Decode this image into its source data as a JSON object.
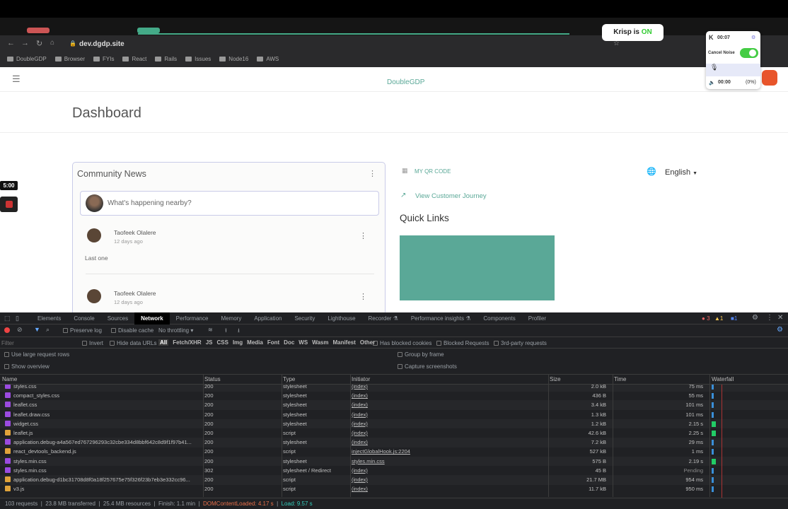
{
  "browser": {
    "url": "dev.dgdp.site",
    "bookmarks": [
      "DoubleGDP",
      "Browser",
      "FYIs",
      "React",
      "Rails",
      "Issues",
      "Node16",
      "AWS"
    ]
  },
  "krisp": {
    "popup_prefix": "Krisp is ",
    "popup_state": "ON",
    "timer": "00:07",
    "cancel_noise_label": "Cancel Noise",
    "cancel_noise_on": true,
    "speaker_time": "00:00",
    "speaker_pct": "(0%)"
  },
  "overlay": {
    "timer_badge": "5:00"
  },
  "app": {
    "brand": "DoubleGDP",
    "page_title": "Dashboard",
    "community_news": {
      "title": "Community News",
      "composer_placeholder": "What's happening nearby?",
      "posts": [
        {
          "author": "Taofeek Olalere",
          "time": "12 days ago",
          "body": "Last one"
        },
        {
          "author": "Taofeek Olalere",
          "time": "12 days ago"
        }
      ]
    },
    "qr_code_label": "MY QR CODE",
    "customer_journey_label": "View Customer Journey",
    "quick_links_title": "Quick Links",
    "language": "English",
    "accent_color": "#5aa897"
  },
  "devtools": {
    "tabs": [
      "Elements",
      "Console",
      "Sources",
      "Network",
      "Performance",
      "Memory",
      "Application",
      "Security",
      "Lighthouse",
      "Recorder ⚗",
      "Performance insights ⚗",
      "Components",
      "Profiler"
    ],
    "active_tab": "Network",
    "counts": {
      "errors": "3",
      "warnings": "1",
      "info": "1"
    },
    "toolbar": {
      "preserve_log": "Preserve log",
      "disable_cache": "Disable cache",
      "throttling": "No throttling"
    },
    "filter": {
      "placeholder": "Filter",
      "invert": "Invert",
      "hide_data_urls": "Hide data URLs",
      "types": [
        "All",
        "Fetch/XHR",
        "JS",
        "CSS",
        "Img",
        "Media",
        "Font",
        "Doc",
        "WS",
        "Wasm",
        "Manifest",
        "Other"
      ],
      "has_blocked_cookies": "Has blocked cookies",
      "blocked_requests": "Blocked Requests",
      "third_party": "3rd-party requests"
    },
    "options": {
      "large_rows": "Use large request rows",
      "show_overview": "Show overview",
      "group_by_frame": "Group by frame",
      "capture_screenshots": "Capture screenshots"
    },
    "columns": [
      "Name",
      "Status",
      "Type",
      "Initiator",
      "Size",
      "Time",
      "Waterfall"
    ],
    "rows": [
      {
        "name": "styles.css",
        "kind": "css",
        "status": "200",
        "type": "stylesheet",
        "initiator": "(index)",
        "size": "2.0 kB",
        "time": "75 ms"
      },
      {
        "name": "compact_styles.css",
        "kind": "css",
        "status": "200",
        "type": "stylesheet",
        "initiator": "(index)",
        "size": "436 B",
        "time": "55 ms"
      },
      {
        "name": "leaflet.css",
        "kind": "css",
        "status": "200",
        "type": "stylesheet",
        "initiator": "(index)",
        "size": "3.4 kB",
        "time": "101 ms"
      },
      {
        "name": "leaflet.draw.css",
        "kind": "css",
        "status": "200",
        "type": "stylesheet",
        "initiator": "(index)",
        "size": "1.3 kB",
        "time": "101 ms"
      },
      {
        "name": "widget.css",
        "kind": "css",
        "status": "200",
        "type": "stylesheet",
        "initiator": "(index)",
        "size": "1.2 kB",
        "time": "2.15 s"
      },
      {
        "name": "leaflet.js",
        "kind": "js",
        "status": "200",
        "type": "script",
        "initiator": "(index)",
        "size": "42.6 kB",
        "time": "2.25 s"
      },
      {
        "name": "application.debug-a4a567ed767296293c32cbe334d8bbf642c8d9f1f97b41...",
        "kind": "css",
        "status": "200",
        "type": "stylesheet",
        "initiator": "(index)",
        "size": "7.2 kB",
        "time": "29 ms"
      },
      {
        "name": "react_devtools_backend.js",
        "kind": "js",
        "status": "200",
        "type": "script",
        "initiator": "injectGlobalHook.js:2204",
        "size": "527 kB",
        "time": "1 ms"
      },
      {
        "name": "styles.min.css",
        "kind": "css",
        "status": "200",
        "type": "stylesheet",
        "initiator": "styles.min.css",
        "size": "575 B",
        "time": "2.19 s"
      },
      {
        "name": "styles.min.css",
        "kind": "css",
        "status": "302",
        "type": "stylesheet / Redirect",
        "initiator": "(index)",
        "size": "45 B",
        "time": "Pending"
      },
      {
        "name": "application.debug-d1bc31708d8f0a18f257675e75f326f23b7eb3e332cc96...",
        "kind": "js",
        "status": "200",
        "type": "script",
        "initiator": "(index)",
        "size": "21.7 MB",
        "time": "954 ms"
      },
      {
        "name": "v3.js",
        "kind": "js",
        "status": "200",
        "type": "script",
        "initiator": "(index)",
        "size": "11.7 kB",
        "time": "950 ms"
      }
    ],
    "summary": {
      "requests": "103 requests",
      "transferred": "23.8 MB transferred",
      "resources": "25.4 MB resources",
      "finish": "Finish: 1.1 min",
      "dom_loaded": "DOMContentLoaded: 4.17 s",
      "load": "Load: 9.57 s"
    }
  }
}
